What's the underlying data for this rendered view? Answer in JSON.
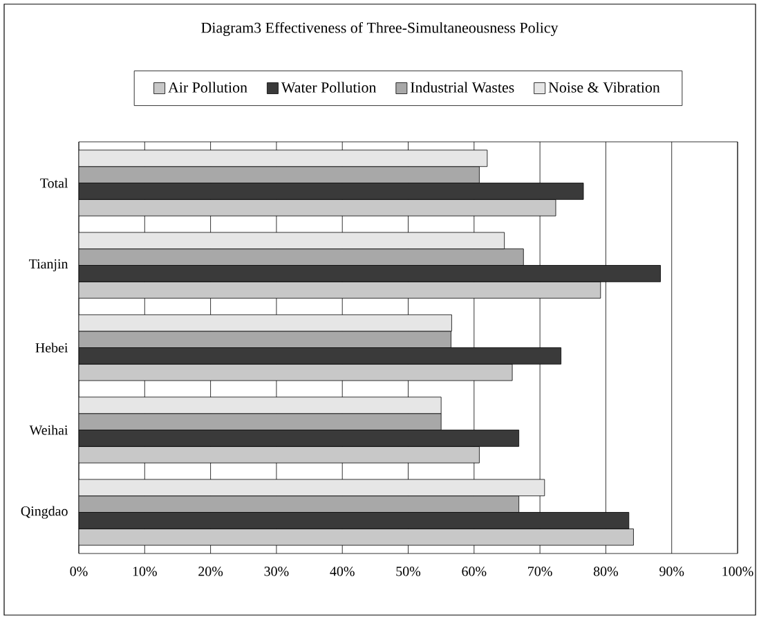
{
  "chart_data": {
    "type": "bar",
    "orientation": "horizontal",
    "title": "Diagram3 Effectiveness of Three-Simultaneousness Policy",
    "categories": [
      "Total",
      "Tianjin",
      "Hebei",
      "Weihai",
      "Qingdao"
    ],
    "series": [
      {
        "name": "Air Pollution",
        "color": "#c8c8c8",
        "values": [
          72.4,
          79.2,
          65.8,
          60.8,
          84.2
        ]
      },
      {
        "name": "Water Pollution",
        "color": "#3a3a3a",
        "values": [
          76.6,
          88.3,
          73.2,
          66.8,
          83.5
        ]
      },
      {
        "name": "Industrial Wastes",
        "color": "#a8a8a8",
        "values": [
          60.8,
          67.5,
          56.5,
          55.0,
          66.8
        ]
      },
      {
        "name": "Noise & Vibration",
        "color": "#e6e6e6",
        "values": [
          62.0,
          64.6,
          56.6,
          55.0,
          70.7
        ]
      }
    ],
    "xlim": [
      0,
      100
    ],
    "xticks": [
      {
        "value": 0,
        "label": "0%"
      },
      {
        "value": 10,
        "label": "10%"
      },
      {
        "value": 20,
        "label": "20%"
      },
      {
        "value": 30,
        "label": "30%"
      },
      {
        "value": 40,
        "label": "40%"
      },
      {
        "value": 50,
        "label": "50%"
      },
      {
        "value": 60,
        "label": "60%"
      },
      {
        "value": 70,
        "label": "70%"
      },
      {
        "value": 80,
        "label": "80%"
      },
      {
        "value": 90,
        "label": "90%"
      },
      {
        "value": 100,
        "label": "100%"
      }
    ],
    "grid": "x",
    "legend": "top"
  }
}
